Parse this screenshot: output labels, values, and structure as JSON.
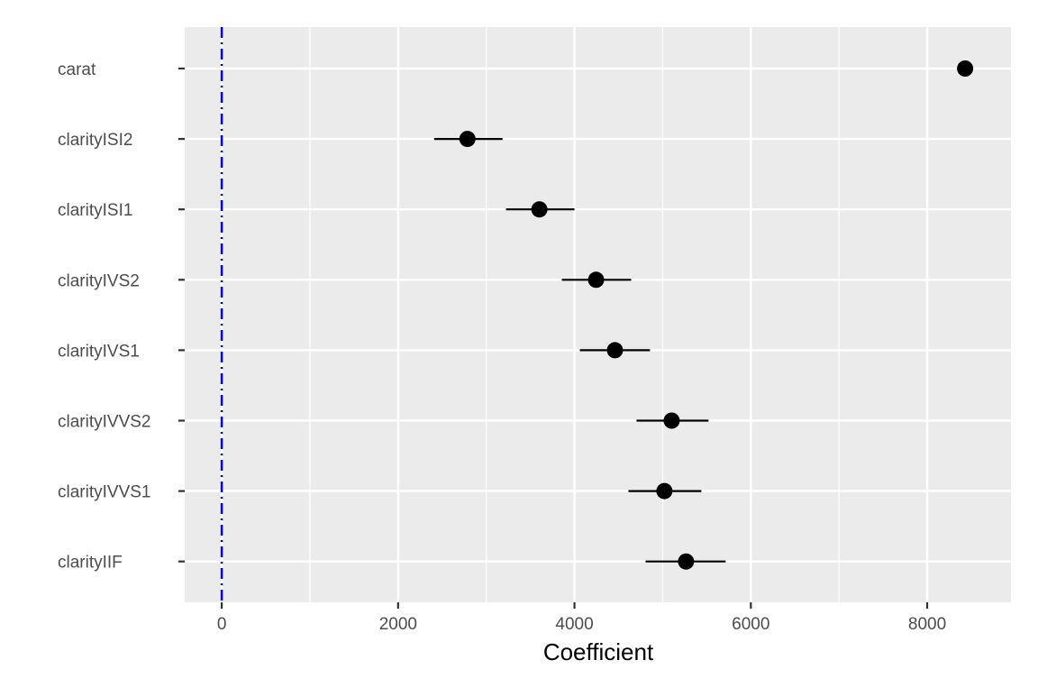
{
  "chart_data": {
    "type": "scatter",
    "subtype": "coefficient-plot",
    "title": "",
    "xlabel": "Coefficient",
    "ylabel": "",
    "xlim": [
      -420,
      8950
    ],
    "xticks": [
      0,
      2000,
      4000,
      6000,
      8000
    ],
    "xtick_labels": [
      "0",
      "2000",
      "4000",
      "6000",
      "8000"
    ],
    "grid": true,
    "reference_line": {
      "x": 0,
      "color": "#0000ff",
      "style": "dot-dash"
    },
    "colors": {
      "panel": "#ebebeb",
      "grid": "#ffffff",
      "point": "#000000"
    },
    "categories": [
      "carat",
      "clarityISI2",
      "clarityISI1",
      "clarityIVS2",
      "clarityIVS1",
      "clarityIVVS2",
      "clarityIVVS1",
      "clarityIIF"
    ],
    "values": [
      8430,
      2786,
      3602,
      4245,
      4459,
      5102,
      5020,
      5265
    ],
    "lower": [
      8360,
      2408,
      3224,
      3857,
      4061,
      4704,
      4612,
      4806
    ],
    "upper": [
      8500,
      3184,
      4000,
      4643,
      4857,
      5520,
      5439,
      5714
    ]
  }
}
